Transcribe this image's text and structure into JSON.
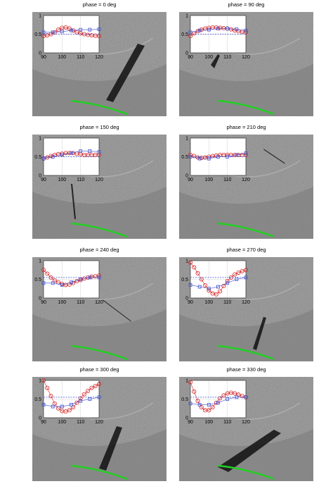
{
  "chart_data": [
    {
      "type": "line",
      "title": "phase = 0 deg",
      "xlim": [
        90,
        120
      ],
      "xticks": [
        90,
        100,
        110,
        120
      ],
      "ylim": [
        0,
        1
      ],
      "yticks": [
        0,
        0.5,
        1
      ],
      "grid": true,
      "series": [
        {
          "color": "#d62020",
          "marker": "o",
          "x": [
            90,
            92,
            94,
            96,
            98,
            100,
            102,
            104,
            106,
            108,
            110,
            112,
            114,
            116,
            118,
            120
          ],
          "values": [
            0.45,
            0.47,
            0.5,
            0.55,
            0.62,
            0.67,
            0.68,
            0.65,
            0.6,
            0.55,
            0.52,
            0.5,
            0.48,
            0.47,
            0.46,
            0.45
          ]
        },
        {
          "color": "#4050d0",
          "marker": "s",
          "x": [
            90,
            95,
            100,
            105,
            110,
            115,
            120
          ],
          "values": [
            0.55,
            0.55,
            0.57,
            0.6,
            0.62,
            0.62,
            0.63
          ]
        },
        {
          "color": "#4050d0",
          "marker": "dash",
          "x": [
            90,
            120
          ],
          "values": [
            0.5,
            0.5
          ]
        }
      ]
    },
    {
      "type": "line",
      "title": "phase = 90 deg",
      "xlim": [
        90,
        120
      ],
      "xticks": [
        90,
        100,
        110,
        120
      ],
      "ylim": [
        0,
        1
      ],
      "yticks": [
        0,
        0.5,
        1
      ],
      "grid": true,
      "series": [
        {
          "color": "#d62020",
          "marker": "o",
          "x": [
            90,
            92,
            94,
            96,
            98,
            100,
            102,
            104,
            106,
            108,
            110,
            112,
            114,
            116,
            118,
            120
          ],
          "values": [
            0.45,
            0.52,
            0.58,
            0.62,
            0.65,
            0.67,
            0.68,
            0.68,
            0.67,
            0.66,
            0.65,
            0.63,
            0.6,
            0.58,
            0.56,
            0.55
          ]
        },
        {
          "color": "#4050d0",
          "marker": "s",
          "x": [
            90,
            95,
            100,
            105,
            110,
            115,
            120
          ],
          "values": [
            0.55,
            0.6,
            0.62,
            0.65,
            0.65,
            0.63,
            0.6
          ]
        },
        {
          "color": "#4050d0",
          "marker": "dash",
          "x": [
            90,
            120
          ],
          "values": [
            0.5,
            0.5
          ]
        }
      ]
    },
    {
      "type": "line",
      "title": "phase = 150 deg",
      "xlim": [
        90,
        120
      ],
      "xticks": [
        90,
        100,
        110,
        120
      ],
      "ylim": [
        0,
        1
      ],
      "yticks": [
        0,
        0.5,
        1
      ],
      "grid": true,
      "series": [
        {
          "color": "#d62020",
          "marker": "o",
          "x": [
            90,
            92,
            94,
            96,
            98,
            100,
            102,
            104,
            106,
            108,
            110,
            112,
            114,
            116,
            118,
            120
          ],
          "values": [
            0.45,
            0.48,
            0.52,
            0.55,
            0.57,
            0.58,
            0.6,
            0.6,
            0.6,
            0.58,
            0.57,
            0.55,
            0.55,
            0.55,
            0.55,
            0.55
          ]
        },
        {
          "color": "#4050d0",
          "marker": "s",
          "x": [
            90,
            95,
            100,
            105,
            110,
            115,
            120
          ],
          "values": [
            0.45,
            0.5,
            0.55,
            0.6,
            0.65,
            0.65,
            0.63
          ]
        },
        {
          "color": "#4050d0",
          "marker": "dash",
          "x": [
            90,
            120
          ],
          "values": [
            0.5,
            0.5
          ]
        }
      ]
    },
    {
      "type": "line",
      "title": "phase = 210 deg",
      "xlim": [
        90,
        120
      ],
      "xticks": [
        90,
        100,
        110,
        120
      ],
      "ylim": [
        0,
        1
      ],
      "yticks": [
        0,
        0.5,
        1
      ],
      "grid": true,
      "series": [
        {
          "color": "#d62020",
          "marker": "o",
          "x": [
            90,
            92,
            94,
            96,
            98,
            100,
            102,
            104,
            106,
            108,
            110,
            112,
            114,
            116,
            118,
            120
          ],
          "values": [
            0.55,
            0.52,
            0.48,
            0.47,
            0.48,
            0.5,
            0.52,
            0.53,
            0.55,
            0.55,
            0.55,
            0.55,
            0.55,
            0.55,
            0.55,
            0.55
          ]
        },
        {
          "color": "#4050d0",
          "marker": "s",
          "x": [
            90,
            95,
            100,
            105,
            110,
            115,
            120
          ],
          "values": [
            0.5,
            0.45,
            0.45,
            0.5,
            0.5,
            0.55,
            0.6
          ]
        },
        {
          "color": "#4050d0",
          "marker": "dash",
          "x": [
            90,
            120
          ],
          "values": [
            0.5,
            0.5
          ]
        }
      ]
    },
    {
      "type": "line",
      "title": "phase = 240 deg",
      "xlim": [
        90,
        120
      ],
      "xticks": [
        90,
        100,
        110,
        120
      ],
      "ylim": [
        0,
        1
      ],
      "yticks": [
        0,
        0.5,
        1
      ],
      "grid": true,
      "series": [
        {
          "color": "#d62020",
          "marker": "o",
          "x": [
            90,
            92,
            94,
            96,
            98,
            100,
            102,
            104,
            106,
            108,
            110,
            112,
            114,
            116,
            118,
            120
          ],
          "values": [
            0.75,
            0.65,
            0.55,
            0.47,
            0.42,
            0.38,
            0.35,
            0.36,
            0.4,
            0.45,
            0.48,
            0.52,
            0.55,
            0.57,
            0.58,
            0.6
          ]
        },
        {
          "color": "#4050d0",
          "marker": "s",
          "x": [
            90,
            95,
            100,
            105,
            110,
            115,
            120
          ],
          "values": [
            0.4,
            0.4,
            0.35,
            0.42,
            0.5,
            0.55,
            0.55
          ]
        },
        {
          "color": "#4050d0",
          "marker": "dash",
          "x": [
            90,
            120
          ],
          "values": [
            0.55,
            0.55
          ]
        }
      ]
    },
    {
      "type": "line",
      "title": "phase = 270 deg",
      "xlim": [
        90,
        120
      ],
      "xticks": [
        90,
        100,
        110,
        120
      ],
      "ylim": [
        0,
        1
      ],
      "yticks": [
        0,
        0.5,
        1
      ],
      "grid": true,
      "series": [
        {
          "color": "#d62020",
          "marker": "o",
          "x": [
            90,
            92,
            94,
            96,
            98,
            100,
            102,
            104,
            106,
            108,
            110,
            112,
            114,
            116,
            118,
            120
          ],
          "values": [
            0.95,
            0.82,
            0.66,
            0.5,
            0.34,
            0.2,
            0.12,
            0.1,
            0.18,
            0.32,
            0.45,
            0.55,
            0.63,
            0.68,
            0.72,
            0.75
          ]
        },
        {
          "color": "#4050d0",
          "marker": "s",
          "x": [
            90,
            95,
            100,
            105,
            110,
            115,
            120
          ],
          "values": [
            0.35,
            0.3,
            0.25,
            0.3,
            0.4,
            0.5,
            0.55
          ]
        },
        {
          "color": "#4050d0",
          "marker": "dash",
          "x": [
            90,
            120
          ],
          "values": [
            0.55,
            0.55
          ]
        }
      ]
    },
    {
      "type": "line",
      "title": "phase = 300 deg",
      "xlim": [
        90,
        120
      ],
      "xticks": [
        90,
        100,
        110,
        120
      ],
      "ylim": [
        0,
        1
      ],
      "yticks": [
        0,
        0.5,
        1
      ],
      "grid": true,
      "series": [
        {
          "color": "#d62020",
          "marker": "o",
          "x": [
            90,
            92,
            94,
            96,
            98,
            100,
            102,
            104,
            106,
            108,
            110,
            112,
            114,
            116,
            118,
            120
          ],
          "values": [
            1.0,
            0.8,
            0.58,
            0.38,
            0.25,
            0.18,
            0.17,
            0.2,
            0.28,
            0.4,
            0.52,
            0.63,
            0.72,
            0.8,
            0.85,
            0.9
          ]
        },
        {
          "color": "#4050d0",
          "marker": "s",
          "x": [
            90,
            95,
            100,
            105,
            110,
            115,
            120
          ],
          "values": [
            0.35,
            0.3,
            0.3,
            0.35,
            0.45,
            0.5,
            0.55
          ]
        },
        {
          "color": "#4050d0",
          "marker": "dash",
          "x": [
            90,
            120
          ],
          "values": [
            0.55,
            0.55
          ]
        }
      ]
    },
    {
      "type": "line",
      "title": "phase = 330 deg",
      "xlim": [
        90,
        120
      ],
      "xticks": [
        90,
        100,
        110,
        120
      ],
      "ylim": [
        0,
        1
      ],
      "yticks": [
        0,
        0.5,
        1
      ],
      "grid": true,
      "series": [
        {
          "color": "#d62020",
          "marker": "o",
          "x": [
            90,
            92,
            94,
            96,
            98,
            100,
            102,
            104,
            106,
            108,
            110,
            112,
            114,
            116,
            118,
            120
          ],
          "values": [
            0.95,
            0.7,
            0.45,
            0.28,
            0.2,
            0.2,
            0.28,
            0.4,
            0.52,
            0.6,
            0.65,
            0.67,
            0.65,
            0.62,
            0.58,
            0.55
          ]
        },
        {
          "color": "#4050d0",
          "marker": "s",
          "x": [
            90,
            95,
            100,
            105,
            110,
            115,
            120
          ],
          "values": [
            0.38,
            0.35,
            0.35,
            0.4,
            0.5,
            0.55,
            0.55
          ]
        },
        {
          "color": "#4050d0",
          "marker": "dash",
          "x": [
            90,
            120
          ],
          "values": [
            0.55,
            0.55
          ]
        }
      ]
    }
  ]
}
